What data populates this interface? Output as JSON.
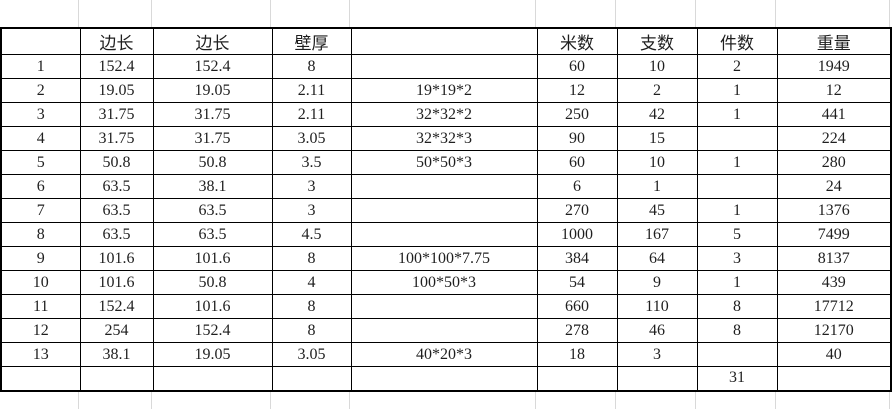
{
  "colors": {
    "highlight_yellow": "#ffff00",
    "highlight_green": "#0cb04f",
    "gridline_light": "#d9d9d9",
    "table_border": "#000000"
  },
  "table": {
    "headers": [
      "",
      "边长",
      "边长",
      "壁厚",
      "",
      "米数",
      "支数",
      "件数",
      "重量"
    ],
    "rows": [
      {
        "cells": [
          "1",
          "152.4",
          "152.4",
          "8",
          "",
          "60",
          "10",
          "2",
          "1949"
        ],
        "yellow": [],
        "green": []
      },
      {
        "cells": [
          "2",
          "19.05",
          "19.05",
          "2.11",
          "19*19*2",
          "12",
          "2",
          "1",
          "12"
        ],
        "yellow": [],
        "green": [
          6
        ]
      },
      {
        "cells": [
          "3",
          "31.75",
          "31.75",
          "2.11",
          "32*32*2",
          "250",
          "42",
          "1",
          "441"
        ],
        "yellow": [],
        "green": []
      },
      {
        "cells": [
          "4",
          "31.75",
          "31.75",
          "3.05",
          "32*32*3",
          "90",
          "15",
          "",
          "224"
        ],
        "yellow": [],
        "green": [
          6
        ]
      },
      {
        "cells": [
          "5",
          "50.8",
          "50.8",
          "3.5",
          "50*50*3",
          "60",
          "10",
          "1",
          "280"
        ],
        "yellow": [],
        "green": []
      },
      {
        "cells": [
          "6",
          "63.5",
          "38.1",
          "3",
          "",
          "6",
          "1",
          "",
          "24"
        ],
        "yellow": [],
        "green": [
          6
        ]
      },
      {
        "cells": [
          "7",
          "63.5",
          "63.5",
          "3",
          "",
          "270",
          "45",
          "1",
          "1376"
        ],
        "yellow": [],
        "green": []
      },
      {
        "cells": [
          "8",
          "63.5",
          "63.5",
          "4.5",
          "",
          "1000",
          "167",
          "5",
          "7499"
        ],
        "yellow": [
          1,
          2,
          3,
          4,
          5
        ],
        "green": []
      },
      {
        "cells": [
          "9",
          "101.6",
          "101.6",
          "8",
          "100*100*7.75",
          "384",
          "64",
          "3",
          "8137"
        ],
        "yellow": [],
        "green": []
      },
      {
        "cells": [
          "10",
          "101.6",
          "50.8",
          "4",
          "100*50*3",
          "54",
          "9",
          "1",
          "439"
        ],
        "yellow": [],
        "green": []
      },
      {
        "cells": [
          "11",
          "152.4",
          "101.6",
          "8",
          "",
          "660",
          "110",
          "8",
          "17712"
        ],
        "yellow": [
          1,
          2,
          3,
          4,
          5
        ],
        "green": []
      },
      {
        "cells": [
          "12",
          "254",
          "152.4",
          "8",
          "",
          "278",
          "46",
          "8",
          "12170"
        ],
        "yellow": [],
        "green": []
      },
      {
        "cells": [
          "13",
          "38.1",
          "19.05",
          "3.05",
          "40*20*3",
          "18",
          "3",
          "",
          "40"
        ],
        "yellow": [],
        "green": [
          6
        ]
      },
      {
        "cells": [
          "",
          "",
          "",
          "",
          "",
          "",
          "",
          "31",
          ""
        ],
        "yellow": [],
        "green": []
      }
    ]
  }
}
